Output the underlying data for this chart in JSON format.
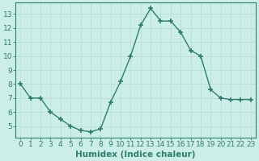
{
  "xlabel": "Humidex (Indice chaleur)",
  "x": [
    0,
    1,
    2,
    3,
    4,
    5,
    6,
    7,
    8,
    9,
    10,
    11,
    12,
    13,
    14,
    15,
    16,
    17,
    18,
    19,
    20,
    21,
    22,
    23
  ],
  "y": [
    8,
    7,
    7,
    6,
    5.5,
    5,
    4.7,
    4.6,
    4.8,
    6.7,
    8.2,
    10.0,
    12.2,
    13.4,
    12.5,
    12.5,
    11.7,
    10.4,
    10.0,
    7.6,
    7.0,
    6.9,
    6.9,
    6.9
  ],
  "ylim": [
    4.2,
    13.8
  ],
  "xlim": [
    -0.5,
    23.5
  ],
  "yticks": [
    5,
    6,
    7,
    8,
    9,
    10,
    11,
    12,
    13
  ],
  "xticks": [
    0,
    1,
    2,
    3,
    4,
    5,
    6,
    7,
    8,
    9,
    10,
    11,
    12,
    13,
    14,
    15,
    16,
    17,
    18,
    19,
    20,
    21,
    22,
    23
  ],
  "line_color": "#2e7d6e",
  "marker_color": "#2e7d6e",
  "bg_color": "#cceee8",
  "grid_color": "#b8d8d2",
  "axis_color": "#2e7d6e",
  "tick_color": "#2e7d6e",
  "label_color": "#2e7d6e",
  "xlabel_fontsize": 7.5,
  "tick_fontsize": 6.5
}
